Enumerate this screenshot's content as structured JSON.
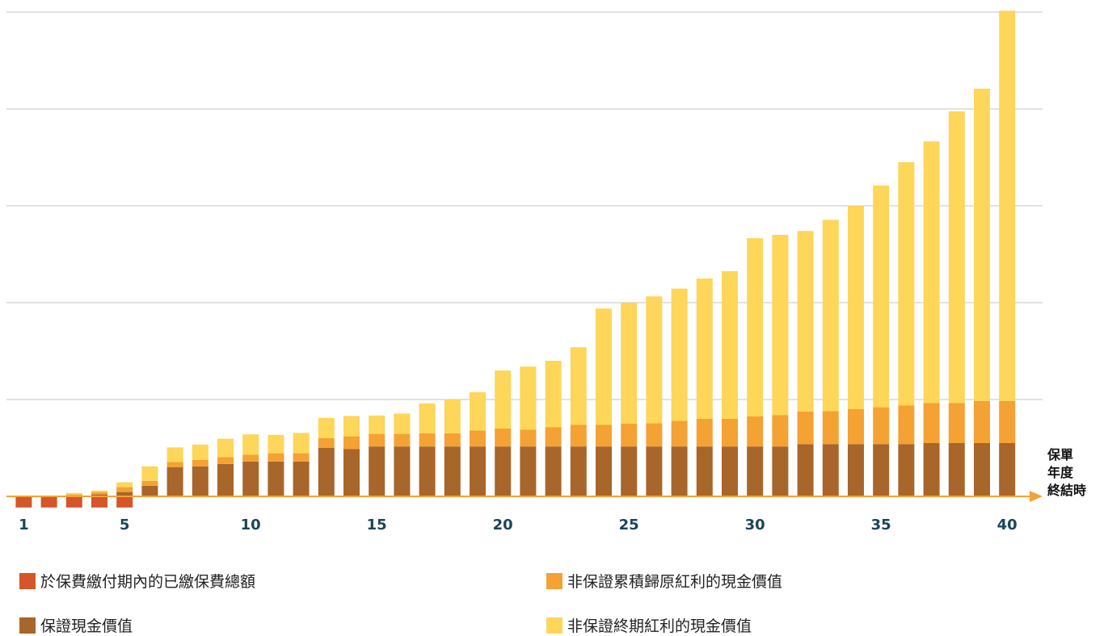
{
  "colors": {
    "premium": "#d4562a",
    "guaranteed": "#a8662a",
    "reversionary": "#f4a233",
    "terminal": "#fdd65a",
    "axis": "#f4a233",
    "grid": "#d9d9d9",
    "tick_text": "#1b4558"
  },
  "x_axis_label_lines": [
    "保單",
    "年度",
    "終結時"
  ],
  "legend": [
    {
      "key": "premium",
      "label": "於保費繳付期內的已繳保費總額"
    },
    {
      "key": "reversionary",
      "label": "非保證累積歸原紅利的現金價值"
    },
    {
      "key": "guaranteed",
      "label": "保證現金價值"
    },
    {
      "key": "terminal",
      "label": "非保證終期紅利的現金價值"
    }
  ],
  "chart_data": {
    "type": "bar",
    "stacked": true,
    "x": [
      1,
      2,
      3,
      4,
      5,
      6,
      7,
      8,
      9,
      10,
      11,
      12,
      13,
      14,
      15,
      16,
      17,
      18,
      19,
      20,
      21,
      22,
      23,
      24,
      25,
      26,
      27,
      28,
      29,
      30,
      31,
      32,
      33,
      34,
      35,
      36,
      37,
      38,
      39,
      40
    ],
    "x_tick_labels": [
      "1",
      "5",
      "10",
      "15",
      "20",
      "25",
      "30",
      "35",
      "40"
    ],
    "xlabel": "保單年度終結時",
    "ylabel": "",
    "ylim": [
      -0.4,
      10
    ],
    "grid": true,
    "series": [
      {
        "name": "於保費繳付期內的已繳保費總額",
        "key": "premium",
        "values": [
          -0.23,
          -0.23,
          -0.23,
          -0.23,
          -0.23,
          0,
          0,
          0,
          0,
          0,
          0,
          0,
          0,
          0,
          0,
          0,
          0,
          0,
          0,
          0,
          0,
          0,
          0,
          0,
          0,
          0,
          0,
          0,
          0,
          0,
          0,
          0,
          0,
          0,
          0,
          0,
          0,
          0,
          0,
          0
        ]
      },
      {
        "name": "保證現金價值",
        "key": "guaranteed",
        "values": [
          0,
          0,
          0.02,
          0.04,
          0.09,
          0.22,
          0.6,
          0.62,
          0.67,
          0.72,
          0.72,
          0.72,
          1.0,
          0.98,
          1.03,
          1.03,
          1.03,
          1.03,
          1.03,
          1.03,
          1.03,
          1.03,
          1.03,
          1.03,
          1.03,
          1.03,
          1.03,
          1.03,
          1.03,
          1.03,
          1.03,
          1.08,
          1.08,
          1.08,
          1.08,
          1.08,
          1.1,
          1.1,
          1.1,
          1.1
        ]
      },
      {
        "name": "非保證累積歸原紅利的現金價值",
        "key": "reversionary",
        "values": [
          0,
          0,
          0.02,
          0.05,
          0.1,
          0.1,
          0.11,
          0.13,
          0.14,
          0.14,
          0.17,
          0.17,
          0.2,
          0.26,
          0.26,
          0.26,
          0.27,
          0.27,
          0.33,
          0.37,
          0.35,
          0.4,
          0.45,
          0.45,
          0.47,
          0.48,
          0.53,
          0.57,
          0.57,
          0.62,
          0.65,
          0.67,
          0.68,
          0.72,
          0.76,
          0.8,
          0.83,
          0.83,
          0.87,
          0.87
        ]
      },
      {
        "name": "非保證終期紅利的現金價值",
        "key": "terminal",
        "values": [
          0,
          0,
          0.03,
          0.03,
          0.1,
          0.3,
          0.3,
          0.32,
          0.38,
          0.42,
          0.38,
          0.42,
          0.42,
          0.42,
          0.38,
          0.42,
          0.62,
          0.7,
          0.79,
          1.2,
          1.3,
          1.37,
          1.6,
          2.4,
          2.5,
          2.62,
          2.73,
          2.9,
          3.05,
          3.68,
          3.72,
          3.73,
          3.95,
          4.2,
          4.58,
          5.02,
          5.4,
          6.02,
          6.45,
          8.06
        ]
      }
    ]
  }
}
